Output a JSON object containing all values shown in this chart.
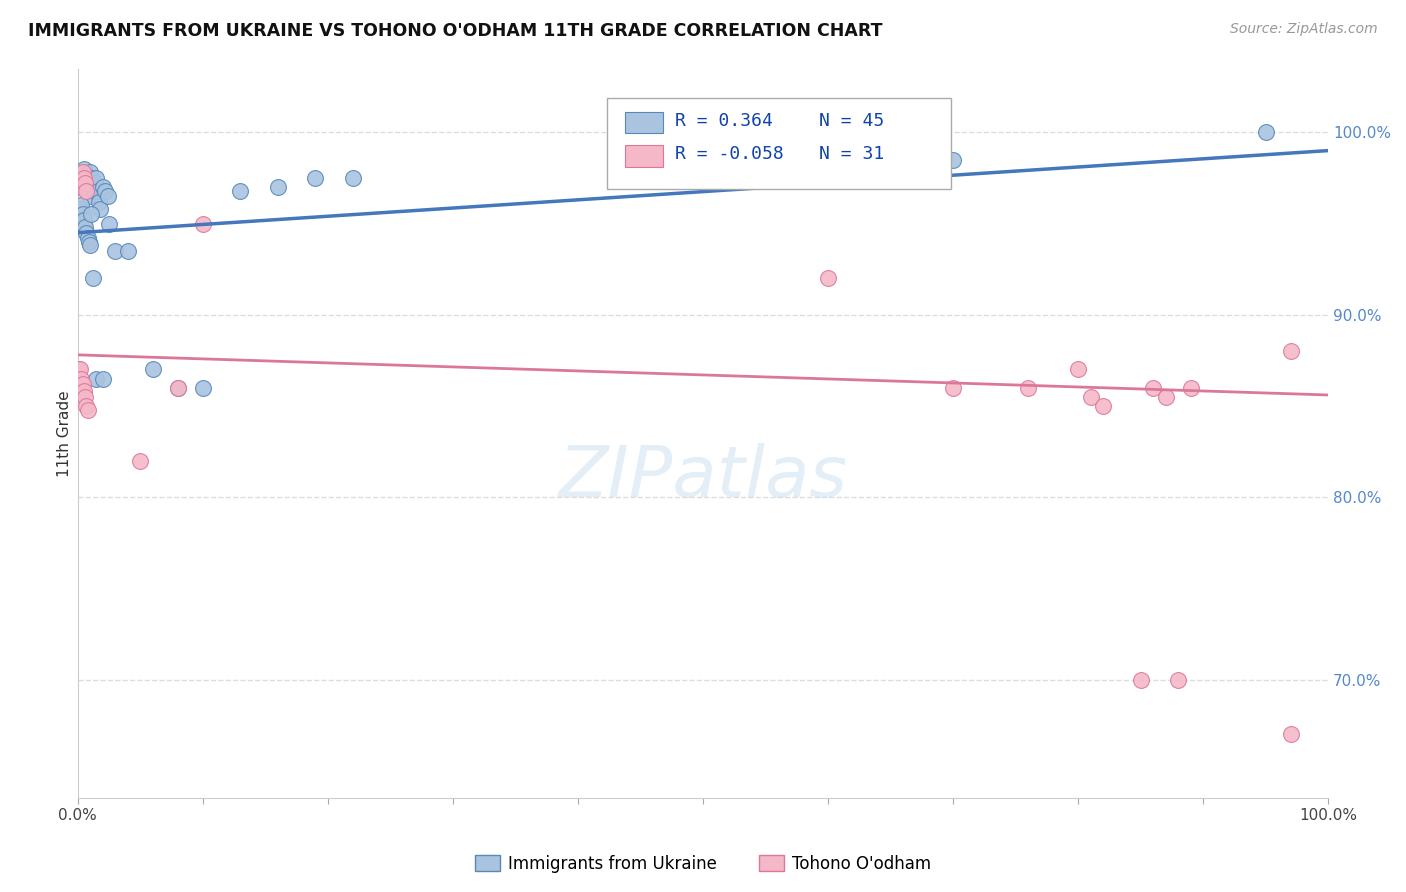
{
  "title": "IMMIGRANTS FROM UKRAINE VS TOHONO O'ODHAM 11TH GRADE CORRELATION CHART",
  "source": "Source: ZipAtlas.com",
  "ylabel": "11th Grade",
  "xlim": [
    0.0,
    1.0
  ],
  "ylim": [
    0.635,
    1.035
  ],
  "xtick_positions": [
    0.0,
    0.1,
    0.2,
    0.3,
    0.4,
    0.5,
    0.6,
    0.7,
    0.8,
    0.9,
    1.0
  ],
  "xticklabels": [
    "0.0%",
    "",
    "",
    "",
    "",
    "",
    "",
    "",
    "",
    "",
    "100.0%"
  ],
  "yticks_right": [
    0.7,
    0.8,
    0.9,
    1.0
  ],
  "ytick_right_labels": [
    "70.0%",
    "80.0%",
    "90.0%",
    "100.0%"
  ],
  "grid_color": "#dddddd",
  "background_color": "#ffffff",
  "blue_color": "#aac4e0",
  "blue_edge_color": "#5588bb",
  "blue_line_color": "#4477bb",
  "pink_color": "#f4b8c8",
  "pink_edge_color": "#dd7799",
  "pink_line_color": "#dd7799",
  "legend_label1": "Immigrants from Ukraine",
  "legend_label2": "Tohono O'odham",
  "R1": "0.364",
  "N1": "45",
  "R2": "-0.058",
  "N2": "31",
  "blue_dots_x": [
    0.002,
    0.003,
    0.004,
    0.005,
    0.006,
    0.007,
    0.008,
    0.009,
    0.01,
    0.011,
    0.012,
    0.013,
    0.014,
    0.015,
    0.016,
    0.017,
    0.018,
    0.02,
    0.022,
    0.024,
    0.002,
    0.003,
    0.004,
    0.005,
    0.006,
    0.007,
    0.008,
    0.009,
    0.01,
    0.011,
    0.025,
    0.03,
    0.04,
    0.06,
    0.08,
    0.1,
    0.13,
    0.16,
    0.19,
    0.22,
    0.012,
    0.015,
    0.02,
    0.7,
    0.95
  ],
  "blue_dots_y": [
    0.97,
    0.975,
    0.975,
    0.98,
    0.975,
    0.97,
    0.968,
    0.965,
    0.978,
    0.975,
    0.97,
    0.968,
    0.972,
    0.975,
    0.968,
    0.962,
    0.958,
    0.97,
    0.968,
    0.965,
    0.958,
    0.96,
    0.955,
    0.952,
    0.948,
    0.945,
    0.942,
    0.94,
    0.938,
    0.955,
    0.95,
    0.935,
    0.935,
    0.87,
    0.86,
    0.86,
    0.968,
    0.97,
    0.975,
    0.975,
    0.92,
    0.865,
    0.865,
    0.985,
    1.0
  ],
  "pink_dots_x": [
    0.001,
    0.002,
    0.003,
    0.004,
    0.005,
    0.006,
    0.007,
    0.001,
    0.002,
    0.003,
    0.004,
    0.005,
    0.006,
    0.007,
    0.008,
    0.05,
    0.08,
    0.1,
    0.6,
    0.7,
    0.76,
    0.8,
    0.81,
    0.82,
    0.85,
    0.86,
    0.87,
    0.88,
    0.89,
    0.97,
    0.97
  ],
  "pink_dots_y": [
    0.975,
    0.972,
    0.97,
    0.978,
    0.975,
    0.972,
    0.968,
    0.87,
    0.87,
    0.865,
    0.862,
    0.858,
    0.855,
    0.85,
    0.848,
    0.82,
    0.86,
    0.95,
    0.92,
    0.86,
    0.86,
    0.87,
    0.855,
    0.85,
    0.7,
    0.86,
    0.855,
    0.7,
    0.86,
    0.88,
    0.67
  ]
}
